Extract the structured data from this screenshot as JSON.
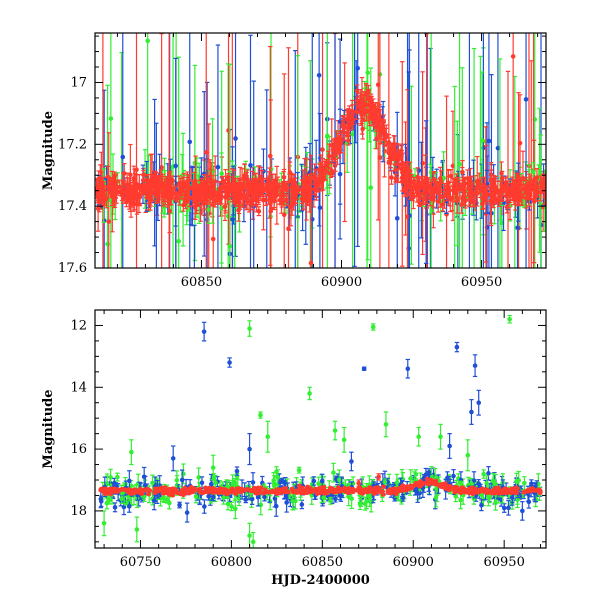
{
  "chart_data": [
    {
      "type": "scatter",
      "ylabel": "Magnitude",
      "xlabel": "",
      "xlim": [
        60812,
        60973
      ],
      "ylim": [
        16.84,
        17.6
      ],
      "y_inverted": true,
      "xticks": [
        60850,
        60900,
        60950
      ],
      "yticks": [
        17,
        17.2,
        17.4,
        17.6
      ],
      "tick_labels_x": [
        "60850",
        "60900",
        "60950"
      ],
      "tick_labels_y": [
        "17",
        "17.2",
        "17.4",
        "17.6"
      ],
      "grid": false,
      "series_colors": [
        "#33ee33",
        "#1f4fd6",
        "#ff3b2f"
      ],
      "note": "Zoomed light curve: baseline ~17.35 mag with a brightening to ~17.08 mag near HJD 60908."
    },
    {
      "type": "scatter",
      "ylabel": "Magnitude",
      "xlabel": "HJD-2400000",
      "xlim": [
        60725,
        60973
      ],
      "ylim": [
        11.5,
        19.2
      ],
      "y_inverted": true,
      "xticks": [
        60750,
        60800,
        60850,
        60900,
        60950
      ],
      "yticks": [
        12,
        14,
        16,
        18
      ],
      "tick_labels_x": [
        "60750",
        "60800",
        "60850",
        "60900",
        "60950"
      ],
      "tick_labels_y": [
        "12",
        "14",
        "16",
        "18"
      ],
      "grid": false,
      "series_colors": [
        "#33ee33",
        "#1f4fd6",
        "#ff3b2f"
      ],
      "outliers": [
        {
          "series": 1,
          "x": 60785,
          "y": 12.2,
          "err": 0.3
        },
        {
          "series": 1,
          "x": 60799,
          "y": 13.2,
          "err": 0.15
        },
        {
          "series": 1,
          "x": 60873,
          "y": 13.4,
          "err": 0.05
        },
        {
          "series": 1,
          "x": 60897,
          "y": 13.4,
          "err": 0.3
        },
        {
          "series": 1,
          "x": 60924,
          "y": 12.7,
          "err": 0.15
        },
        {
          "series": 1,
          "x": 60932,
          "y": 14.8,
          "err": 0.4
        },
        {
          "series": 1,
          "x": 60934,
          "y": 13.3,
          "err": 0.35
        },
        {
          "series": 1,
          "x": 60936,
          "y": 14.5,
          "err": 0.4
        },
        {
          "series": 0,
          "x": 60810,
          "y": 12.1,
          "err": 0.25
        },
        {
          "series": 0,
          "x": 60878,
          "y": 12.05,
          "err": 0.1
        },
        {
          "series": 0,
          "x": 60953,
          "y": 11.8,
          "err": 0.12
        },
        {
          "series": 0,
          "x": 60816,
          "y": 14.9,
          "err": 0.1
        },
        {
          "series": 0,
          "x": 60843,
          "y": 14.2,
          "err": 0.2
        },
        {
          "series": 0,
          "x": 60820,
          "y": 15.6,
          "err": 0.5
        },
        {
          "series": 0,
          "x": 60857,
          "y": 15.4,
          "err": 0.3
        },
        {
          "series": 0,
          "x": 60862,
          "y": 15.7,
          "err": 0.4
        },
        {
          "series": 0,
          "x": 60885,
          "y": 15.2,
          "err": 0.4
        },
        {
          "series": 0,
          "x": 60903,
          "y": 15.6,
          "err": 0.3
        },
        {
          "series": 1,
          "x": 60768,
          "y": 16.3,
          "err": 0.4
        },
        {
          "series": 1,
          "x": 60810,
          "y": 16.0,
          "err": 0.5
        },
        {
          "series": 1,
          "x": 60866,
          "y": 16.4,
          "err": 0.3
        },
        {
          "series": 0,
          "x": 60745,
          "y": 16.1,
          "err": 0.4
        },
        {
          "series": 0,
          "x": 60790,
          "y": 16.6,
          "err": 0.4
        },
        {
          "series": 0,
          "x": 60915,
          "y": 15.6,
          "err": 0.4
        },
        {
          "series": 0,
          "x": 60930,
          "y": 16.2,
          "err": 0.5
        },
        {
          "series": 1,
          "x": 60920,
          "y": 15.9,
          "err": 0.4
        },
        {
          "series": 0,
          "x": 60730,
          "y": 18.4,
          "err": 0.4
        },
        {
          "series": 0,
          "x": 60748,
          "y": 18.6,
          "err": 0.4
        },
        {
          "series": 0,
          "x": 60810,
          "y": 18.8,
          "err": 0.4
        },
        {
          "series": 0,
          "x": 60812,
          "y": 19.0,
          "err": 0.3
        },
        {
          "series": 1,
          "x": 60960,
          "y": 18.0,
          "err": 0.3
        },
        {
          "series": 2,
          "x": 60881,
          "y": 16.9,
          "err": 0.1
        },
        {
          "series": 2,
          "x": 60870,
          "y": 17.1,
          "err": 0.1
        }
      ]
    }
  ]
}
